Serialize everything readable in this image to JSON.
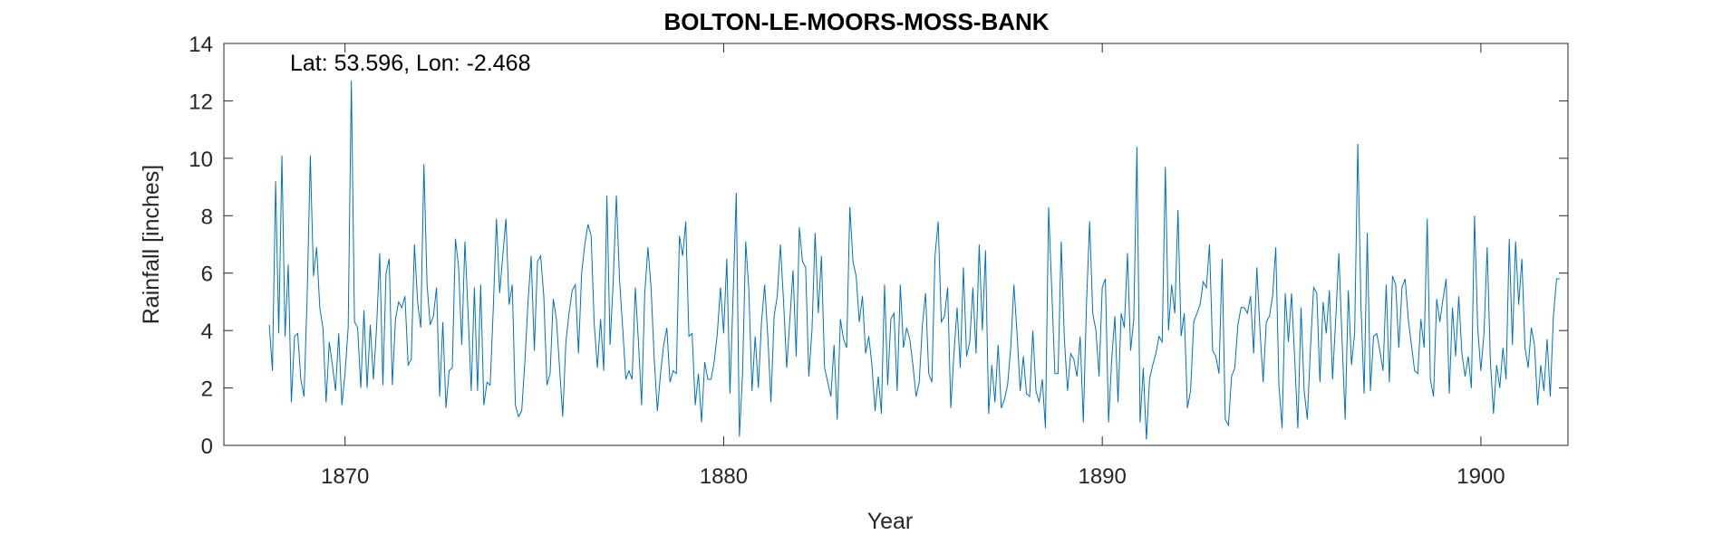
{
  "chart_data": {
    "type": "line",
    "title": "BOLTON-LE-MOORS-MOSS-BANK",
    "annotation": "Lat: 53.596, Lon: -2.468",
    "xlabel": "Year",
    "ylabel": "Rainfall [inches]",
    "xlim": [
      1866.8,
      1902.3
    ],
    "ylim": [
      0,
      14
    ],
    "xticks": [
      1870,
      1880,
      1890,
      1900
    ],
    "yticks": [
      0,
      2,
      4,
      6,
      8,
      10,
      12,
      14
    ],
    "grid": false,
    "series": [
      {
        "color": "#0072BD",
        "x_start": 1868.0,
        "x_step": 0.08333,
        "values": [
          4.2,
          2.6,
          9.2,
          3.9,
          10.1,
          3.8,
          6.3,
          1.5,
          3.8,
          3.9,
          2.3,
          1.7,
          5.2,
          10.1,
          5.9,
          6.9,
          4.8,
          4.1,
          1.5,
          3.6,
          2.8,
          1.9,
          3.9,
          1.4,
          2.5,
          4.1,
          12.7,
          4.3,
          4.1,
          2.0,
          4.7,
          2.0,
          4.2,
          2.3,
          4.1,
          6.7,
          2.1,
          6.0,
          6.5,
          2.1,
          4.4,
          5.0,
          4.8,
          5.2,
          2.8,
          3.0,
          7.0,
          5.0,
          4.1,
          9.8,
          5.6,
          4.2,
          4.5,
          5.5,
          1.7,
          4.3,
          1.3,
          2.6,
          2.7,
          7.2,
          6.2,
          3.5,
          7.1,
          4.6,
          1.9,
          5.5,
          1.9,
          5.6,
          1.4,
          2.2,
          2.1,
          4.8,
          7.9,
          5.3,
          6.6,
          7.9,
          4.9,
          5.6,
          1.4,
          1.0,
          1.2,
          2.9,
          5.0,
          6.6,
          3.3,
          6.4,
          6.6,
          5.2,
          2.1,
          2.5,
          5.1,
          4.4,
          2.7,
          1.0,
          3.6,
          4.6,
          5.4,
          5.6,
          3.2,
          6.0,
          7.0,
          7.7,
          7.3,
          4.2,
          2.7,
          4.4,
          2.6,
          8.7,
          3.5,
          5.7,
          8.7,
          5.8,
          4.1,
          2.3,
          2.6,
          2.3,
          5.5,
          3.6,
          1.4,
          5.3,
          6.9,
          5.5,
          3.0,
          1.2,
          2.5,
          3.5,
          4.1,
          2.2,
          2.6,
          2.5,
          7.3,
          6.6,
          7.8,
          3.8,
          3.9,
          1.4,
          2.5,
          0.8,
          2.9,
          2.3,
          2.3,
          2.9,
          3.9,
          5.5,
          3.9,
          6.5,
          1.8,
          5.2,
          8.8,
          0.3,
          2.5,
          7.1,
          5.4,
          1.9,
          3.8,
          2.0,
          4.3,
          5.6,
          3.8,
          1.5,
          4.5,
          5.2,
          7.0,
          5.0,
          2.7,
          4.4,
          6.1,
          3.1,
          7.6,
          6.4,
          6.2,
          2.4,
          4.0,
          7.4,
          4.6,
          6.6,
          2.7,
          2.2,
          1.7,
          3.5,
          0.9,
          4.4,
          3.7,
          3.4,
          8.3,
          6.4,
          5.9,
          4.3,
          5.2,
          3.2,
          3.8,
          2.8,
          1.2,
          2.4,
          1.1,
          5.6,
          2.1,
          4.4,
          4.6,
          1.9,
          5.6,
          3.4,
          4.1,
          3.7,
          2.8,
          1.7,
          2.2,
          4.2,
          5.3,
          2.5,
          2.2,
          6.6,
          7.8,
          4.3,
          4.5,
          5.5,
          1.3,
          3.2,
          4.8,
          2.7,
          6.2,
          3.1,
          3.6,
          5.5,
          3.2,
          7.0,
          4.0,
          6.8,
          1.1,
          2.8,
          1.5,
          3.5,
          1.3,
          1.6,
          2.1,
          3.4,
          5.6,
          3.9,
          1.9,
          3.1,
          1.8,
          1.7,
          4.0,
          1.9,
          1.5,
          2.3,
          0.6,
          8.3,
          5.4,
          2.5,
          2.5,
          7.1,
          3.7,
          1.9,
          3.2,
          3.0,
          2.4,
          3.8,
          0.8,
          4.9,
          7.8,
          4.6,
          4.0,
          2.4,
          5.5,
          5.8,
          0.8,
          3.0,
          4.5,
          1.5,
          4.6,
          4.1,
          6.7,
          3.3,
          4.4,
          10.4,
          0.8,
          2.7,
          0.2,
          2.3,
          2.8,
          3.2,
          3.8,
          3.6,
          9.7,
          4.0,
          5.6,
          4.6,
          8.2,
          3.8,
          4.6,
          1.3,
          1.9,
          4.3,
          4.6,
          4.9,
          5.7,
          5.5,
          7.0,
          3.3,
          3.1,
          2.5,
          6.5,
          0.9,
          0.7,
          2.4,
          2.7,
          4.2,
          4.8,
          4.8,
          4.6,
          5.2,
          3.2,
          6.2,
          4.0,
          2.2,
          4.3,
          4.5,
          5.2,
          6.9,
          2.1,
          0.6,
          5.3,
          3.6,
          5.3,
          3.0,
          0.6,
          4.8,
          1.9,
          0.9,
          3.4,
          5.5,
          5.3,
          2.2,
          5.0,
          3.9,
          5.4,
          2.3,
          4.4,
          6.7,
          3.7,
          0.9,
          5.4,
          2.8,
          3.9,
          10.5,
          4.9,
          1.8,
          7.4,
          1.9,
          3.8,
          3.9,
          3.3,
          2.6,
          5.6,
          2.2,
          5.9,
          5.6,
          3.4,
          5.5,
          5.8,
          4.4,
          3.5,
          2.6,
          2.5,
          4.4,
          3.4,
          7.9,
          2.3,
          1.7,
          5.1,
          4.3,
          5.1,
          5.8,
          1.8,
          4.8,
          3.1,
          5.2,
          3.2,
          2.4,
          3.1,
          2.0,
          8.0,
          4.1,
          2.6,
          3.9,
          6.9,
          3.0,
          1.1,
          2.8,
          2.0,
          3.4,
          2.3,
          7.2,
          3.5,
          7.1,
          4.9,
          6.5,
          3.4,
          2.7,
          4.1,
          3.5,
          1.4,
          2.8,
          1.9,
          3.7,
          1.7,
          4.5,
          5.8,
          5.8
        ]
      }
    ]
  }
}
